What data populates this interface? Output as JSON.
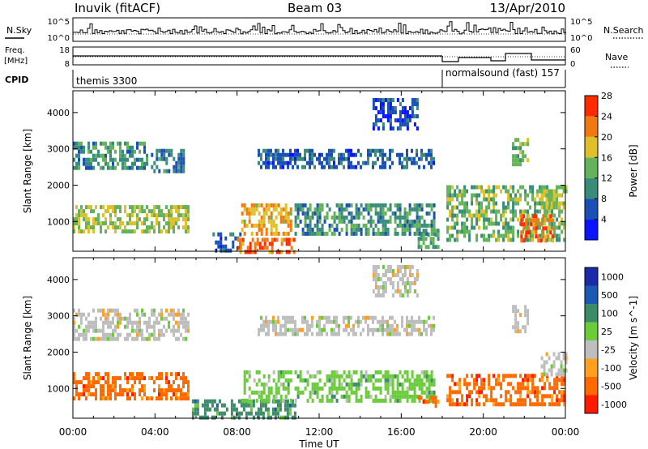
{
  "header": {
    "station": "Inuvik (fitACF)",
    "beam": "Beam 03",
    "date": "13/Apr/2010"
  },
  "status_panels": {
    "nsky_label": "N.Sky",
    "nsky_ticks": [
      "10^5",
      "10^0"
    ],
    "nsearch_label": "N.Search",
    "nsearch_ticks": [
      "10^5",
      "10^0"
    ],
    "freq_label_1": "Freq.",
    "freq_label_2": "[MHz]",
    "freq_ticks": [
      "18",
      "8"
    ],
    "nave_label": "Nave",
    "nave_ticks": [
      "60",
      "0"
    ],
    "cpid_label": "CPID",
    "cpid_segments": [
      {
        "name": "themis 3300",
        "start_hour": 0,
        "end_hour": 18.0
      },
      {
        "name": "normalsound (fast) 157",
        "start_hour": 18.0,
        "end_hour": 24
      }
    ]
  },
  "colors": {
    "power": [
      "#0a14ff",
      "#1a4fb4",
      "#3a8c7a",
      "#63b35a",
      "#e0c02a",
      "#f07a10",
      "#ff2a00"
    ],
    "velocity": [
      "#ff1a00",
      "#ff6a00",
      "#ffa020",
      "#bebebe",
      "#6acc3a",
      "#3c8c6a",
      "#1a5ab4",
      "#1a2aa8"
    ]
  },
  "chart_data": [
    {
      "type": "heatmap",
      "ylabel": "Slant Range [km]",
      "xlabel": "",
      "xlim": [
        0,
        24
      ],
      "ylim": [
        180,
        4600
      ],
      "yticks": [
        "1000",
        "2000",
        "3000",
        "4000"
      ],
      "colorbar_label": "Power [dB]",
      "colorbar_ticks": [
        "4",
        "8",
        "12",
        "16",
        "20",
        "24",
        "28"
      ],
      "colorbar_range": [
        0,
        32
      ],
      "regions": [
        {
          "x": [
            0.0,
            3.6
          ],
          "y": [
            2500,
            3200
          ],
          "v": 12
        },
        {
          "x": [
            3.8,
            5.4
          ],
          "y": [
            2400,
            3000
          ],
          "v": 10
        },
        {
          "x": [
            0.0,
            5.6
          ],
          "y": [
            700,
            1450
          ],
          "v": 18
        },
        {
          "x": [
            6.8,
            8.2
          ],
          "y": [
            200,
            700
          ],
          "v": 8
        },
        {
          "x": [
            8.0,
            10.8
          ],
          "y": [
            200,
            550
          ],
          "v": 26
        },
        {
          "x": [
            8.2,
            10.6
          ],
          "y": [
            700,
            1500
          ],
          "v": 22
        },
        {
          "x": [
            10.8,
            17.6
          ],
          "y": [
            700,
            1500
          ],
          "v": 12
        },
        {
          "x": [
            9.0,
            17.6
          ],
          "y": [
            2500,
            3000
          ],
          "v": 8
        },
        {
          "x": [
            14.6,
            16.8
          ],
          "y": [
            3600,
            4400
          ],
          "v": 6
        },
        {
          "x": [
            16.8,
            17.8
          ],
          "y": [
            300,
            800
          ],
          "v": 14
        },
        {
          "x": [
            18.2,
            24.0
          ],
          "y": [
            500,
            2000
          ],
          "v": 16
        },
        {
          "x": [
            21.8,
            23.4
          ],
          "y": [
            500,
            1200
          ],
          "v": 26
        },
        {
          "x": [
            22.8,
            24.0
          ],
          "y": [
            1400,
            2000
          ],
          "v": 18
        },
        {
          "x": [
            21.4,
            22.2
          ],
          "y": [
            2600,
            3300
          ],
          "v": 16
        }
      ]
    },
    {
      "type": "heatmap",
      "ylabel": "Slant Range [km]",
      "xlabel": "Time UT",
      "xlim": [
        0,
        24
      ],
      "ylim": [
        180,
        4600
      ],
      "yticks": [
        "1000",
        "2000",
        "3000",
        "4000"
      ],
      "xticks": [
        "00:00",
        "04:00",
        "08:00",
        "12:00",
        "16:00",
        "20:00",
        "00:00"
      ],
      "colorbar_label": "Velocity [m s^-1]",
      "colorbar_ticks": [
        "1000",
        "500",
        "100",
        "25",
        "-25",
        "-100",
        "-500",
        "-1000"
      ],
      "regions": [
        {
          "x": [
            0.0,
            5.6
          ],
          "y": [
            2400,
            3200
          ],
          "v": 0
        },
        {
          "x": [
            0.0,
            5.6
          ],
          "y": [
            700,
            1450
          ],
          "v": -200
        },
        {
          "x": [
            5.8,
            10.8
          ],
          "y": [
            200,
            700
          ],
          "v": 150
        },
        {
          "x": [
            8.2,
            10.6
          ],
          "y": [
            700,
            1500
          ],
          "v": 60
        },
        {
          "x": [
            10.8,
            17.6
          ],
          "y": [
            700,
            1500
          ],
          "v": 60
        },
        {
          "x": [
            9.0,
            17.6
          ],
          "y": [
            2500,
            3000
          ],
          "v": 0
        },
        {
          "x": [
            14.6,
            16.8
          ],
          "y": [
            3600,
            4400
          ],
          "v": 0
        },
        {
          "x": [
            16.8,
            17.8
          ],
          "y": [
            500,
            800
          ],
          "v": -200
        },
        {
          "x": [
            18.2,
            24.0
          ],
          "y": [
            600,
            1400
          ],
          "v": -300
        },
        {
          "x": [
            22.8,
            24.0
          ],
          "y": [
            1400,
            2000
          ],
          "v": 0
        },
        {
          "x": [
            21.4,
            22.2
          ],
          "y": [
            2600,
            3300
          ],
          "v": 0
        }
      ]
    }
  ]
}
